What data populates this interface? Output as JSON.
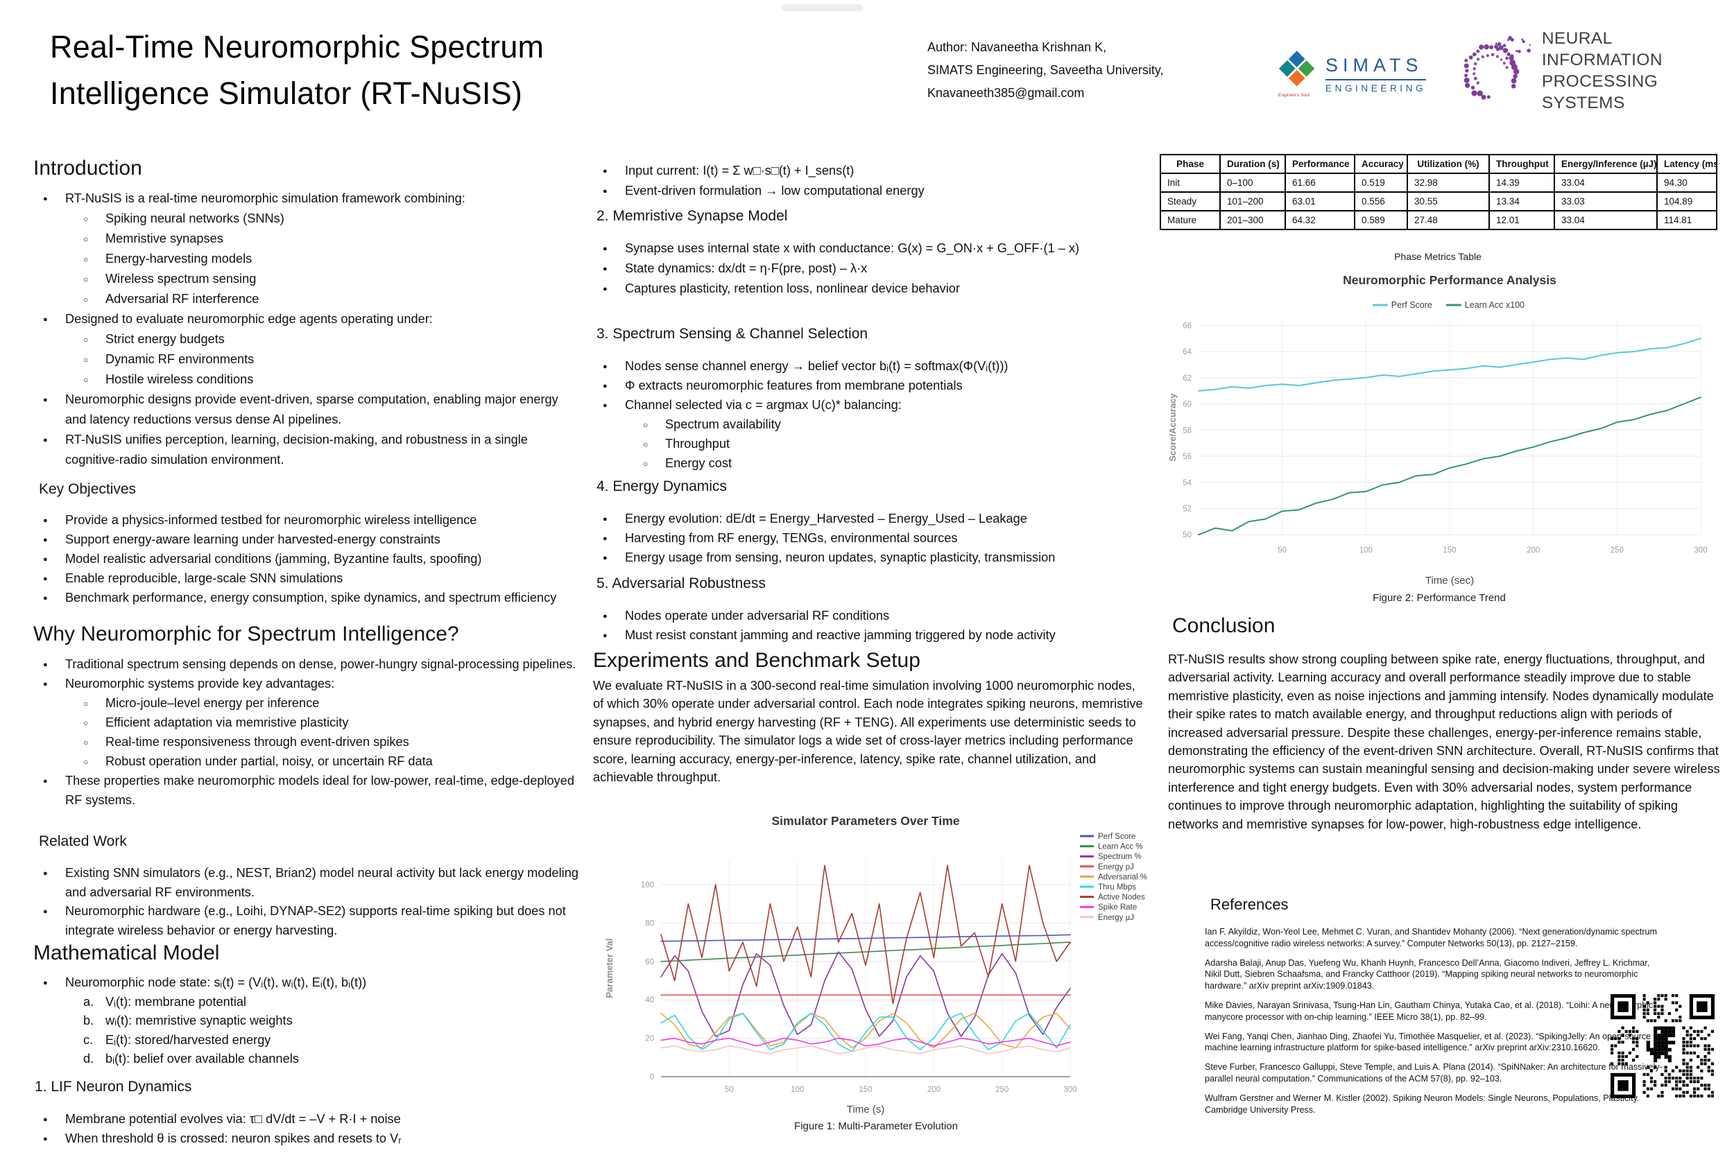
{
  "header": {
    "title_line1": "Real-Time Neuromorphic Spectrum",
    "title_line2": "Intelligence Simulator (RT-NuSIS)",
    "author_line1": "Author: Navaneetha Krishnan K,",
    "author_line2": "SIMATS Engineering, Saveetha University,",
    "author_line3": "Knavaneeth385@gmail.com",
    "simats_logo": {
      "line1": "SIMATS",
      "line2": "ENGINEERING",
      "tagline": "Engineer's Soul"
    },
    "neurips_logo": {
      "line1": "NEURAL INFORMATION",
      "line2": "PROCESSING SYSTEMS"
    }
  },
  "left": {
    "intro_heading": "Introduction",
    "intro_items": [
      {
        "l": 0,
        "t": "RT-NuSIS is a real-time neuromorphic simulation framework combining:"
      },
      {
        "l": 1,
        "t": "Spiking neural networks (SNNs)"
      },
      {
        "l": 1,
        "t": "Memristive synapses"
      },
      {
        "l": 1,
        "t": "Energy-harvesting models"
      },
      {
        "l": 1,
        "t": "Wireless spectrum sensing"
      },
      {
        "l": 1,
        "t": "Adversarial RF interference"
      },
      {
        "l": 0,
        "t": "Designed to evaluate neuromorphic edge agents operating under:"
      },
      {
        "l": 1,
        "t": "Strict energy budgets"
      },
      {
        "l": 1,
        "t": "Dynamic RF environments"
      },
      {
        "l": 1,
        "t": "Hostile wireless conditions"
      },
      {
        "l": 0,
        "t": "Neuromorphic designs provide event-driven, sparse computation, enabling major energy and latency reductions versus dense AI pipelines."
      },
      {
        "l": 0,
        "t": "RT-NuSIS unifies perception, learning, decision-making, and robustness in a single cognitive-radio simulation environment."
      }
    ],
    "key_objectives_heading": "Key Objectives",
    "key_objectives_items": [
      {
        "l": 0,
        "t": "Provide a physics-informed testbed for neuromorphic wireless intelligence"
      },
      {
        "l": 0,
        "t": "Support energy-aware learning under harvested-energy constraints"
      },
      {
        "l": 0,
        "t": "Model realistic adversarial conditions (jamming, Byzantine faults, spoofing)"
      },
      {
        "l": 0,
        "t": "Enable reproducible, large-scale SNN simulations"
      },
      {
        "l": 0,
        "t": "Benchmark performance, energy consumption, spike dynamics, and spectrum efficiency"
      }
    ],
    "why_heading": "Why Neuromorphic for Spectrum Intelligence?",
    "why_items": [
      {
        "l": 0,
        "t": "Traditional spectrum sensing depends on dense, power-hungry signal-processing pipelines."
      },
      {
        "l": 0,
        "t": "Neuromorphic systems provide key advantages:"
      },
      {
        "l": 1,
        "t": "Micro-joule–level energy per inference"
      },
      {
        "l": 1,
        "t": "Efficient adaptation via memristive plasticity"
      },
      {
        "l": 1,
        "t": "Real-time responsiveness through event-driven spikes"
      },
      {
        "l": 1,
        "t": "Robust operation under partial, noisy, or uncertain RF data"
      },
      {
        "l": 0,
        "t": "These properties make neuromorphic models ideal for low-power, real-time, edge-deployed RF systems."
      }
    ],
    "related_heading": "Related Work",
    "related_items": [
      {
        "l": 0,
        "t": "Existing SNN simulators (e.g., NEST, Brian2) model neural activity but lack energy modeling and adversarial RF environments."
      },
      {
        "l": 0,
        "t": "Neuromorphic hardware (e.g., Loihi, DYNAP-SE2) supports real-time spiking but does not integrate wireless behavior or energy harvesting."
      }
    ],
    "math_heading": "Mathematical Model",
    "math_items": [
      {
        "l": 0,
        "t": "Neuromorphic node state: sᵢ(t) = (Vᵢ(t), wᵢ(t), Eᵢ(t), bᵢ(t))"
      },
      {
        "l": 1,
        "m": "a.",
        "t": "Vᵢ(t): membrane potential"
      },
      {
        "l": 1,
        "m": "b.",
        "t": "wᵢ(t): memristive synaptic weights"
      },
      {
        "l": 1,
        "m": "c.",
        "t": "Eᵢ(t): stored/harvested energy"
      },
      {
        "l": 1,
        "m": "d.",
        "t": "bᵢ(t): belief over available channels"
      }
    ],
    "lif_heading": "1. LIF Neuron Dynamics",
    "lif_items": [
      {
        "l": 0,
        "t": "Membrane potential evolves via: τ□ dV/dt = –V + R·I + noise"
      },
      {
        "l": 0,
        "t": "When threshold θ is crossed: neuron spikes and resets to Vᵣ"
      }
    ]
  },
  "middle": {
    "top_items": [
      {
        "l": 0,
        "t": "Input current: I(t) = Σ w□·s□(t) + I_sens(t)"
      },
      {
        "l": 0,
        "t": "Event-driven formulation → low computational energy"
      }
    ],
    "sec2_heading": "2. Memristive Synapse Model",
    "sec2_items": [
      {
        "l": 0,
        "t": "Synapse uses internal state x with conductance: G(x) = G_ON·x + G_OFF·(1 – x)"
      },
      {
        "l": 0,
        "t": "State dynamics: dx/dt = η·F(pre, post) – λ·x"
      },
      {
        "l": 0,
        "t": "Captures plasticity, retention loss, nonlinear device behavior"
      }
    ],
    "sec3_heading": "3. Spectrum Sensing & Channel Selection",
    "sec3_items": [
      {
        "l": 0,
        "t": "Nodes sense channel energy → belief vector bᵢ(t) = softmax(Φ(Vᵢ(t)))"
      },
      {
        "l": 0,
        "t": "Φ extracts neuromorphic features from membrane potentials"
      },
      {
        "l": 0,
        "t": "Channel selected via c = argmax U(c)* balancing:"
      },
      {
        "l": 1,
        "t": "Spectrum availability"
      },
      {
        "l": 1,
        "t": "Throughput"
      },
      {
        "l": 1,
        "t": "Energy cost"
      }
    ],
    "sec4_heading": "4. Energy Dynamics",
    "sec4_items": [
      {
        "l": 0,
        "t": "Energy evolution: dE/dt = Energy_Harvested – Energy_Used – Leakage"
      },
      {
        "l": 0,
        "t": "Harvesting from RF energy, TENGs, environmental sources"
      },
      {
        "l": 0,
        "t": "Energy usage from sensing, neuron updates, synaptic plasticity, transmission"
      }
    ],
    "sec5_heading": "5. Adversarial Robustness",
    "sec5_items": [
      {
        "l": 0,
        "t": "Nodes operate under adversarial RF conditions"
      },
      {
        "l": 0,
        "t": "Must resist constant jamming and reactive jamming triggered by node activity"
      }
    ],
    "experiments_heading": "Experiments and Benchmark Setup",
    "experiments_text": "We evaluate RT-NuSIS in a 300-second real-time simulation involving 1000 neuromorphic nodes, of which 30% operate under adversarial control. Each node integrates spiking neurons, memristive synapses, and hybrid energy harvesting (RF + TENG). All experiments use deterministic seeds to ensure reproducibility. The simulator logs a wide set of cross-layer metrics including performance score, learning accuracy, energy-per-inference, latency, spike rate, channel utilization, and achievable throughput.",
    "figure1_caption": "Figure 1: Multi-Parameter Evolution"
  },
  "right": {
    "table": {
      "caption": "Phase Metrics Table",
      "headers": [
        "Phase",
        "Duration (s)",
        "Performance",
        "Accuracy",
        "Utilization (%)",
        "Throughput",
        "Energy/Inference (µJ)",
        "Latency (ms)"
      ],
      "rows": [
        [
          "Init",
          "0–100",
          "61.66",
          "0.519",
          "32.98",
          "14.39",
          "33.04",
          "94.30"
        ],
        [
          "Steady",
          "101–200",
          "63.01",
          "0.556",
          "30.55",
          "13.34",
          "33.03",
          "104.89"
        ],
        [
          "Mature",
          "201–300",
          "64.32",
          "0.589",
          "27.48",
          "12.01",
          "33.04",
          "114.81"
        ]
      ]
    },
    "figure2_caption": "Figure 2: Performance Trend",
    "conclusion_heading": "Conclusion",
    "conclusion_text": "RT-NuSIS results show strong coupling between spike rate, energy fluctuations, throughput, and adversarial activity. Learning accuracy and overall performance steadily improve due to stable memristive plasticity, even as noise injections and jamming intensify. Nodes dynamically modulate their spike rates to match available energy, and throughput reductions align with periods of increased adversarial pressure. Despite these challenges, energy-per-inference remains stable, demonstrating the efficiency of the event-driven SNN architecture. Overall, RT-NuSIS confirms that neuromorphic systems can sustain meaningful sensing and decision-making under severe wireless interference and tight energy budgets. Even with 30% adversarial nodes, system performance continues to improve through neuromorphic adaptation, highlighting the suitability of spiking networks and memristive synapses for low-power, high-robustness edge intelligence.",
    "references_heading": "References",
    "references": [
      "Ian F. Akyildiz, Won-Yeol Lee, Mehmet C. Vuran, and Shantidev Mohanty (2006). “Next generation/dynamic spectrum access/cognitive radio wireless networks: A survey.” Computer Networks 50(13), pp. 2127–2159.",
      "Adarsha Balaji, Anup Das, Yuefeng Wu, Khanh Huynh, Francesco Dell’Anna, Giacomo Indiveri, Jeffrey L. Krichmar, Nikil Dutt, Siebren Schaafsma, and Francky Catthoor (2019). “Mapping spiking neural networks to neuromorphic hardware.” arXiv preprint arXiv:1909.01843.",
      "Mike Davies, Narayan Srinivasa, Tsung-Han Lin, Gautham Chinya, Yutaka Cao, et al. (2018). “Loihi: A neuromorphic manycore processor with on-chip learning.” IEEE Micro 38(1), pp. 82–99.",
      "Wei Fang, Yanqi Chen, Jianhao Ding, Zhaofei Yu, Timothée Masquelier, et al. (2023). “SpikingJelly: An open-source machine learning infrastructure platform for spike-based intelligence.” arXiv preprint arXiv:2310.16620.",
      "Steve Furber, Francesco Galluppi, Steve Temple, and Luis A. Plana (2014). “SpiNNaker: An architecture for massively-parallel neural computation.” Communications of the ACM 57(8), pp. 92–103.",
      "Wulfram Gerstner and Werner M. Kistler (2002). Spiking Neuron Models: Single Neurons, Populations, Plasticity. Cambridge University Press."
    ]
  },
  "chart_data": [
    {
      "type": "line",
      "title": "Simulator Parameters Over Time",
      "xlabel": "Time (s)",
      "ylabel": "Parameter Val",
      "xlim": [
        0,
        300
      ],
      "ylim": [
        0,
        113
      ],
      "x_ticks": [
        50,
        100,
        150,
        200,
        250,
        300
      ],
      "y_ticks": [
        0,
        20,
        40,
        60,
        80,
        100
      ],
      "grid": true,
      "legend_position": "right",
      "x": [
        0,
        10,
        20,
        30,
        40,
        50,
        60,
        70,
        80,
        90,
        100,
        110,
        120,
        130,
        140,
        150,
        160,
        170,
        180,
        190,
        200,
        210,
        220,
        230,
        240,
        250,
        260,
        270,
        280,
        290,
        300
      ],
      "series": [
        {
          "name": "Perf Score",
          "color": "#4558c9",
          "values": [
            70.5,
            70.6,
            70.7,
            70.8,
            70.9,
            71.0,
            71.1,
            71.2,
            71.3,
            71.4,
            71.5,
            71.6,
            71.7,
            71.8,
            71.9,
            72.0,
            72.2,
            72.3,
            72.4,
            72.5,
            72.6,
            72.8,
            72.9,
            73.0,
            73.1,
            73.2,
            73.3,
            73.4,
            73.5,
            73.7,
            73.9
          ]
        },
        {
          "name": "Learn Acc %",
          "color": "#3c8a50",
          "values": [
            60.0,
            60.3,
            60.7,
            61.0,
            61.3,
            61.7,
            62.0,
            62.3,
            62.7,
            63.0,
            63.3,
            63.7,
            64.0,
            64.3,
            64.7,
            65.0,
            65.3,
            65.7,
            66.0,
            66.3,
            66.7,
            67.0,
            67.3,
            67.7,
            68.0,
            68.3,
            68.7,
            69.0,
            69.3,
            69.7,
            70.0
          ]
        },
        {
          "name": "Spectrum %",
          "color": "#87379b",
          "values": [
            52,
            63,
            55,
            34,
            21,
            24,
            48,
            64,
            58,
            37,
            22,
            27,
            50,
            65,
            56,
            35,
            21,
            29,
            52,
            63,
            55,
            33,
            21,
            31,
            53,
            64,
            54,
            32,
            22,
            36,
            46
          ]
        },
        {
          "name": "Energy pJ",
          "color": "#e25550",
          "values": [
            42.5,
            42.5,
            42.5,
            42.5,
            42.5,
            42.5,
            42.5,
            42.5,
            42.5,
            42.5,
            42.5,
            42.5,
            42.5,
            42.5,
            42.5,
            42.5,
            42.5,
            42.5,
            42.5,
            42.5,
            42.5,
            42.5,
            42.5,
            42.5,
            42.5,
            42.5,
            42.5,
            42.5,
            42.5,
            42.5,
            42.5
          ]
        },
        {
          "name": "Adversarial %",
          "color": "#f2a33c",
          "values": [
            33,
            27,
            17,
            15,
            23,
            31,
            33,
            24,
            16,
            18,
            27,
            33,
            30,
            21,
            15,
            20,
            29,
            33,
            28,
            19,
            15,
            22,
            30,
            33,
            26,
            17,
            15,
            24,
            31,
            33,
            25
          ]
        },
        {
          "name": "Thru Mbps",
          "color": "#27dbe4",
          "values": [
            28,
            32,
            21,
            14,
            19,
            30,
            33,
            23,
            14,
            17,
            28,
            33,
            27,
            17,
            13,
            23,
            31,
            31,
            20,
            14,
            20,
            30,
            33,
            22,
            14,
            18,
            29,
            33,
            24,
            15,
            27
          ]
        },
        {
          "name": "Active Nodes",
          "color": "#a93c32",
          "values": [
            74,
            50,
            90,
            62,
            100,
            55,
            70,
            47,
            90,
            60,
            78,
            52,
            110,
            70,
            85,
            58,
            90,
            38,
            72,
            96,
            62,
            110,
            68,
            75,
            52,
            90,
            60,
            110,
            80,
            60,
            70
          ]
        },
        {
          "name": "Spike Rate",
          "color": "#ef3be4",
          "values": [
            19,
            20,
            18,
            17,
            19,
            20,
            18,
            16,
            18,
            20,
            19,
            17,
            18,
            20,
            19,
            16,
            17,
            19,
            20,
            18,
            16,
            18,
            20,
            19,
            17,
            18,
            19,
            20,
            18,
            16,
            18
          ]
        },
        {
          "name": "Energy µJ",
          "color": "#f6c3ca",
          "values": [
            15,
            16,
            14,
            13,
            14,
            16,
            15,
            13,
            12,
            14,
            15,
            16,
            14,
            12,
            13,
            15,
            16,
            14,
            13,
            12,
            14,
            15,
            16,
            14,
            12,
            13,
            15,
            16,
            14,
            13,
            15
          ]
        }
      ]
    },
    {
      "type": "line",
      "title": "Neuromorphic Performance Analysis",
      "xlabel": "Time (sec)",
      "ylabel": "Score/Accuracy",
      "xlim": [
        0,
        300
      ],
      "ylim": [
        49.8,
        66.6
      ],
      "x_ticks": [
        50,
        100,
        150,
        200,
        250,
        300
      ],
      "y_ticks": [
        50,
        52,
        54,
        56,
        58,
        60,
        62,
        64,
        66
      ],
      "grid": true,
      "legend_position": "top",
      "x": [
        0,
        10,
        20,
        30,
        40,
        50,
        60,
        70,
        80,
        90,
        100,
        110,
        120,
        130,
        140,
        150,
        160,
        170,
        180,
        190,
        200,
        210,
        220,
        230,
        240,
        250,
        260,
        270,
        280,
        290,
        300
      ],
      "series": [
        {
          "name": "Perf Score",
          "color": "#54c9dd",
          "values": [
            61.0,
            61.1,
            61.3,
            61.2,
            61.4,
            61.5,
            61.4,
            61.6,
            61.8,
            61.9,
            62.0,
            62.2,
            62.1,
            62.3,
            62.5,
            62.6,
            62.7,
            62.9,
            62.8,
            63.0,
            63.2,
            63.4,
            63.5,
            63.4,
            63.7,
            63.9,
            64.0,
            64.2,
            64.3,
            64.6,
            65.0
          ]
        },
        {
          "name": "Learn Acc x100",
          "color": "#329866",
          "values": [
            50.0,
            50.5,
            50.3,
            51.0,
            51.2,
            51.8,
            51.9,
            52.4,
            52.7,
            53.2,
            53.3,
            53.8,
            54.0,
            54.5,
            54.6,
            55.1,
            55.4,
            55.8,
            56.0,
            56.4,
            56.7,
            57.1,
            57.4,
            57.8,
            58.1,
            58.6,
            58.8,
            59.2,
            59.5,
            60.0,
            60.5
          ]
        }
      ]
    }
  ]
}
